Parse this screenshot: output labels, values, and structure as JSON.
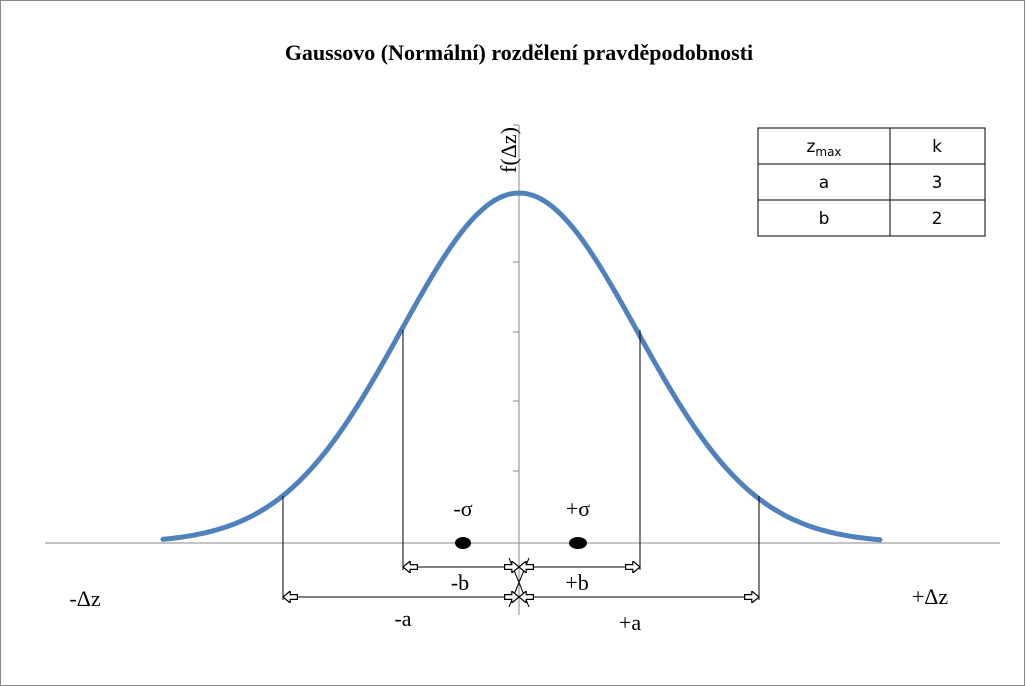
{
  "title": "Gaussovo (Normální)  rozdělení  pravděpodobnosti",
  "y_axis_label": "f(Δz)",
  "x_axis_labels": {
    "left": "-Δz",
    "right": "+Δz"
  },
  "labels": {
    "minus_sigma": "-σ",
    "plus_sigma": "+σ",
    "minus_b": "-b",
    "plus_b": "+b",
    "minus_a": "-a",
    "plus_a": "+a"
  },
  "table": {
    "header": [
      {
        "base": "z",
        "sub": "max"
      },
      "k"
    ],
    "rows": [
      [
        "a",
        "3"
      ],
      [
        "b",
        "2"
      ]
    ]
  }
}
